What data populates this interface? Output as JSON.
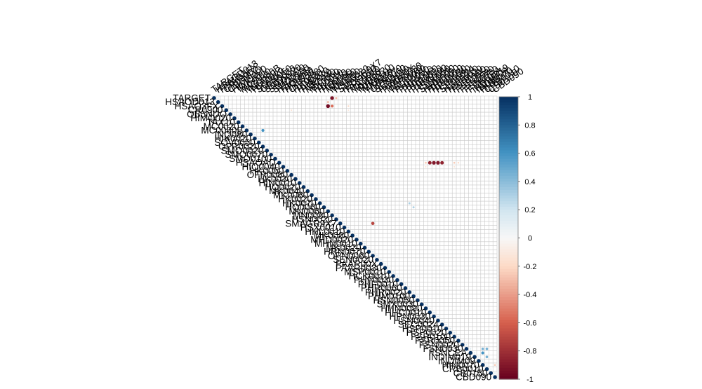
{
  "chart_data": {
    "type": "heatmap",
    "subtype": "correlation-matrix-upper-triangle",
    "title": "",
    "n_vars": 70,
    "row_labels": [
      "TARGET",
      "HSAOD013",
      "HSAO3FX",
      "CR0900",
      "OB5NDO",
      "HIMQ020",
      "TAX10",
      "MC0020",
      "MC0080B",
      "INQ080",
      "HIK0020",
      "SOV0050",
      "OFR0020",
      "SMO0020",
      "SMO0070",
      "SMO0100",
      "HSAOAD",
      "HIQ0040",
      "HK0050",
      "OFR0080",
      "HK0030",
      "HIN0010",
      "HQ0020",
      "MK0040",
      "MK0060",
      "HK0020",
      "HK0070",
      "HQ0060",
      "MN0060",
      "MN0080",
      "HSN0020",
      "SMAGR9X7",
      "HSX0010",
      "HHL0010",
      "MK0080",
      "MHD0020",
      "MHN0010",
      "MK0020",
      "HRN0070",
      "OPN0060",
      "SEN0020",
      "PAAR00X",
      "PAAR0030",
      "MSP0010",
      "HCK0010",
      "PHF0030",
      "PHF0010",
      "PHR0060",
      "PHR0020",
      "PHM0100",
      "HSN0050",
      "SMX0030",
      "HHN0090",
      "HHC0010",
      "HPN0030",
      "HSN0040",
      "SEC0024",
      "HSP0010",
      "HSP0020",
      "FSR0100",
      "FSR0050",
      "FSN0020",
      "FSN0030",
      "FSNCEA",
      "INDIM019",
      "INDIM09",
      "HIN0070",
      "CRB0010",
      "CB0150",
      "CBD090"
    ],
    "col_labels_visible": [
      "TARGET",
      "TAX10",
      "MC0020",
      "HSAO3FX",
      "OB5NDO",
      "TMPC"
    ],
    "color_scale": {
      "type": "diverging",
      "range": [
        -1,
        1
      ],
      "ticks": [
        "1",
        "0.8",
        "0.6",
        "0.4",
        "0.2",
        "0",
        "-0.2",
        "-0.4",
        "-0.6",
        "-0.8",
        "-1"
      ],
      "colors": {
        "-1": "#67001f",
        "-0.6": "#d6604d",
        "-0.2": "#fddbc7",
        "0": "#f7f7f7",
        "0.2": "#d1e5f0",
        "0.6": "#4393c3",
        "1": "#053061"
      }
    },
    "legend_placement": "right",
    "grid": true,
    "diagonal_value": 1,
    "notable_cells": [
      {
        "row": "TARGET",
        "col": 29,
        "r": -0.92
      },
      {
        "row": "TARGET",
        "col": 30,
        "r": -0.3
      },
      {
        "row": "HSAOD013",
        "col": 28,
        "r": -0.3
      },
      {
        "row": "HSAO3FX",
        "col": 28,
        "r": -0.95
      },
      {
        "row": "HSAO3FX",
        "col": 29,
        "r": -0.55
      },
      {
        "row": "HSAO3FX",
        "col": 33,
        "r": -0.2
      },
      {
        "row": "CR0900",
        "col": 19,
        "r": -0.15
      },
      {
        "row": "CR0900",
        "col": 33,
        "r": -0.12
      },
      {
        "row": "MC0080B",
        "col": 12,
        "r": 0.6
      },
      {
        "row": "HSAOAD",
        "col": 52,
        "r": -0.25
      },
      {
        "row": "HSAOAD",
        "col": 53,
        "r": -0.85
      },
      {
        "row": "HSAOAD",
        "col": 54,
        "r": -0.9
      },
      {
        "row": "HSAOAD",
        "col": 55,
        "r": -0.9
      },
      {
        "row": "HSAOAD",
        "col": 56,
        "r": -0.85
      },
      {
        "row": "HSAOAD",
        "col": 59,
        "r": -0.25
      },
      {
        "row": "HSAOAD",
        "col": 60,
        "r": -0.2
      },
      {
        "row": "HIQ0040",
        "col": 52,
        "r": -0.15
      },
      {
        "row": "HIQ0040",
        "col": 59,
        "r": -0.15
      },
      {
        "row": "HK0070",
        "col": 48,
        "r": 0.3
      },
      {
        "row": "HQ0060",
        "col": 49,
        "r": 0.3
      },
      {
        "row": "SMAGR9X7",
        "col": 39,
        "r": -0.7
      },
      {
        "row": "FSN0030",
        "col": 66,
        "r": 0.45
      },
      {
        "row": "FSN0030",
        "col": 67,
        "r": 0.45
      },
      {
        "row": "FSNCEA",
        "col": 66,
        "r": 0.6
      },
      {
        "row": "INDIM019",
        "col": 67,
        "r": 0.45
      },
      {
        "row": "HIN0070",
        "col": 69,
        "r": -0.25
      }
    ]
  }
}
